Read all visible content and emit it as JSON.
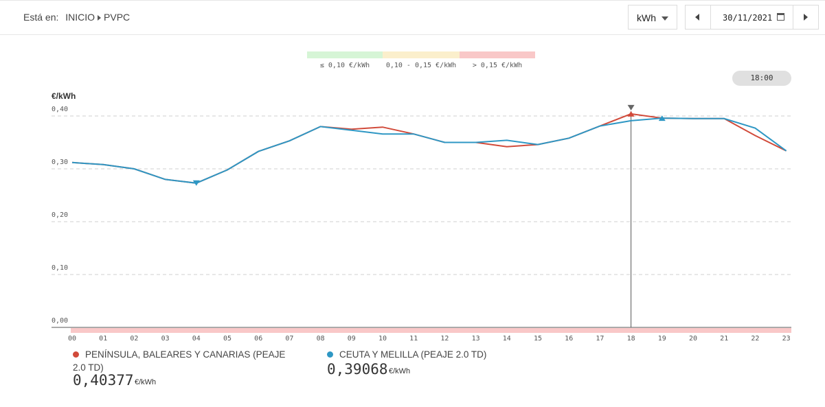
{
  "header": {
    "breadcrumb_label": "Está en:",
    "crumbs": [
      "INICIO",
      "PVPC"
    ],
    "unit_select": "kWh",
    "date": "30/11/2021"
  },
  "price_legend": [
    {
      "label": "≤ 0,10 €/kWh",
      "color": "#d6f5d6"
    },
    {
      "label": "0,10 - 0,15 €/kWh",
      "color": "#fbefcc"
    },
    {
      "label": "> 0,15 €/kWh",
      "color": "#f9c8c8"
    }
  ],
  "selected_time": "18:00",
  "colors": {
    "peninsula": "#d14a3a",
    "ceuta": "#2e97c4",
    "band": "#f9c8c8"
  },
  "chart_data": {
    "type": "line",
    "ylabel": "€/kWh",
    "ylim": [
      0,
      0.4
    ],
    "yticks": [
      0.4,
      0.3,
      0.2,
      0.1,
      0.0
    ],
    "ytick_labels": [
      "0,40",
      "0,30",
      "0,20",
      "0,10",
      "0,00"
    ],
    "categories": [
      "00",
      "01",
      "02",
      "03",
      "04",
      "05",
      "06",
      "07",
      "08",
      "09",
      "10",
      "11",
      "12",
      "13",
      "14",
      "15",
      "16",
      "17",
      "18",
      "19",
      "20",
      "21",
      "22",
      "23"
    ],
    "series": [
      {
        "name": "PENÍNSULA, BALEARES Y CANARIAS (PEAJE 2.0 TD)",
        "color": "#d14a3a",
        "values": [
          0.312,
          0.308,
          0.3,
          0.28,
          0.273,
          0.298,
          0.333,
          0.353,
          0.38,
          0.375,
          0.379,
          0.366,
          0.35,
          0.35,
          0.342,
          0.346,
          0.358,
          0.381,
          0.404,
          0.396,
          0.395,
          0.395,
          0.363,
          0.334
        ]
      },
      {
        "name": "CEUTA Y MELILLA (PEAJE 2.0 TD)",
        "color": "#2e97c4",
        "values": [
          0.312,
          0.308,
          0.3,
          0.28,
          0.273,
          0.298,
          0.333,
          0.353,
          0.38,
          0.373,
          0.366,
          0.366,
          0.35,
          0.35,
          0.354,
          0.346,
          0.358,
          0.381,
          0.391,
          0.396,
          0.395,
          0.395,
          0.377,
          0.334
        ]
      }
    ],
    "markers": {
      "max_hour": "18",
      "min_hour": "04",
      "ceuta_max_hour": "19"
    },
    "grid": true
  },
  "readout": [
    {
      "name": "PENÍNSULA, BALEARES Y CANARIAS (PEAJE 2.0 TD)",
      "value": "0,40377",
      "unit": "€/kWh"
    },
    {
      "name": "CEUTA Y MELILLA (PEAJE 2.0 TD)",
      "value": "0,39068",
      "unit": "€/kWh"
    }
  ]
}
